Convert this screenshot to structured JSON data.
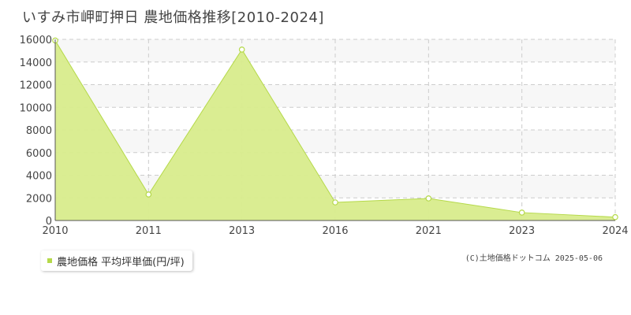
{
  "chart_data": {
    "type": "area",
    "title": "いすみ市岬町押日 農地価格推移[2010-2024]",
    "x": [
      "2010",
      "2011",
      "2013",
      "2016",
      "2021",
      "2023",
      "2024"
    ],
    "series": [
      {
        "name": "農地価格 平均坪単価(円/坪)",
        "values": [
          15900,
          2300,
          15100,
          1600,
          1950,
          700,
          300
        ]
      }
    ],
    "ylim": [
      0,
      16000
    ],
    "yticks": [
      0,
      2000,
      4000,
      6000,
      8000,
      10000,
      12000,
      14000,
      16000
    ],
    "grid": true,
    "legend_position": "bottom-left",
    "colors": {
      "fill": "#d8ec8c",
      "line": "#b5d94a",
      "marker": "#b5d94a",
      "grid": "#cccccc",
      "band": "#f7f7f7"
    }
  },
  "credit": "(C)土地価格ドットコム 2025-05-06"
}
